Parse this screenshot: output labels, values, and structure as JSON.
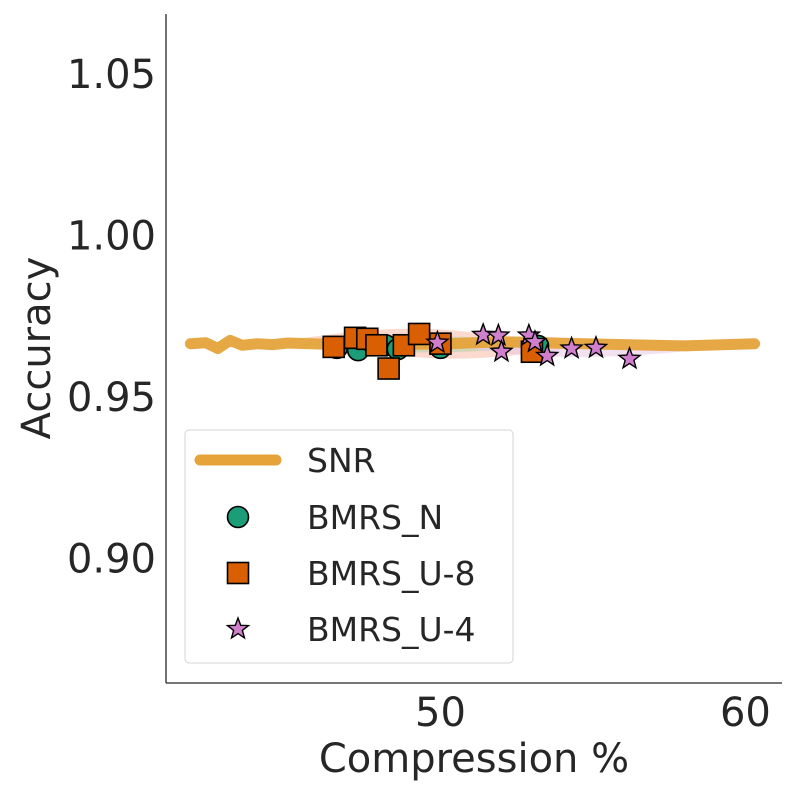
{
  "chart_data": {
    "type": "scatter",
    "xlabel": "Compression %",
    "ylabel": "Accuracy",
    "xlim": [
      41,
      61.2
    ],
    "ylim": [
      0.8615,
      1.0685
    ],
    "xticks": [
      50,
      60
    ],
    "xtick_labels": [
      "50",
      "60"
    ],
    "yticks": [
      0.9,
      0.95,
      1.0,
      1.05
    ],
    "ytick_labels": [
      "0.90",
      "0.95",
      "1.00",
      "1.05"
    ],
    "grid": false,
    "legend_placement": "lower-left",
    "series": [
      {
        "name": "SNR",
        "kind": "line",
        "color": "#E5A33A",
        "x": [
          41.8,
          42.3,
          42.7,
          43.1,
          43.5,
          44.0,
          44.5,
          45.0,
          46.0,
          47.0,
          48.0,
          49.0,
          50.0,
          52.0,
          54.0,
          56.0,
          58.0,
          60.3
        ],
        "y": [
          0.9665,
          0.9668,
          0.965,
          0.9675,
          0.966,
          0.9665,
          0.9662,
          0.9667,
          0.9664,
          0.966,
          0.9668,
          0.9663,
          0.9664,
          0.9671,
          0.9666,
          0.9662,
          0.9658,
          0.9665
        ]
      },
      {
        "name": "BMRS_N",
        "kind": "scatter",
        "marker": "circle",
        "color": "#1B9E77",
        "x": [
          46.6,
          47.3,
          47.8,
          48.2,
          48.6,
          50.0,
          53.2
        ],
        "y": [
          0.9652,
          0.9645,
          0.9665,
          0.966,
          0.9648,
          0.9652,
          0.9658
        ]
      },
      {
        "name": "BMRS_U-8",
        "kind": "scatter",
        "marker": "square",
        "color": "#D95F02",
        "x": [
          46.5,
          47.2,
          47.6,
          47.9,
          48.3,
          48.8,
          49.3,
          50.0,
          53.0
        ],
        "y": [
          0.9655,
          0.9683,
          0.968,
          0.966,
          0.9588,
          0.966,
          0.9695,
          0.9665,
          0.964
        ]
      },
      {
        "name": "BMRS_U-4",
        "kind": "scatter",
        "marker": "star",
        "color": "#D07FCC",
        "x": [
          49.9,
          51.4,
          51.9,
          52.0,
          52.9,
          53.1,
          53.5,
          54.3,
          55.1,
          56.2
        ],
        "y": [
          0.9668,
          0.9692,
          0.969,
          0.964,
          0.969,
          0.967,
          0.9627,
          0.965,
          0.9652,
          0.9618
        ]
      }
    ],
    "confidence_bands": [
      {
        "series": "BMRS_U-8",
        "color": "#F7B9A8",
        "x_range": [
          45.5,
          54.0
        ],
        "y_center": 0.9665,
        "y_half_width": 0.0045,
        "skew": -0.0035
      },
      {
        "series": "BMRS_N",
        "color": "#B5CFA6",
        "x_range": [
          45.3,
          54.0
        ],
        "y_center": 0.9663,
        "y_half_width": 0.0025,
        "skew": 0.0
      },
      {
        "series": "BMRS_U-4",
        "color": "#E7C9E6",
        "x_range": [
          49.5,
          57.9
        ],
        "y_center": 0.9655,
        "y_half_width": 0.003,
        "skew": -0.003
      }
    ]
  }
}
